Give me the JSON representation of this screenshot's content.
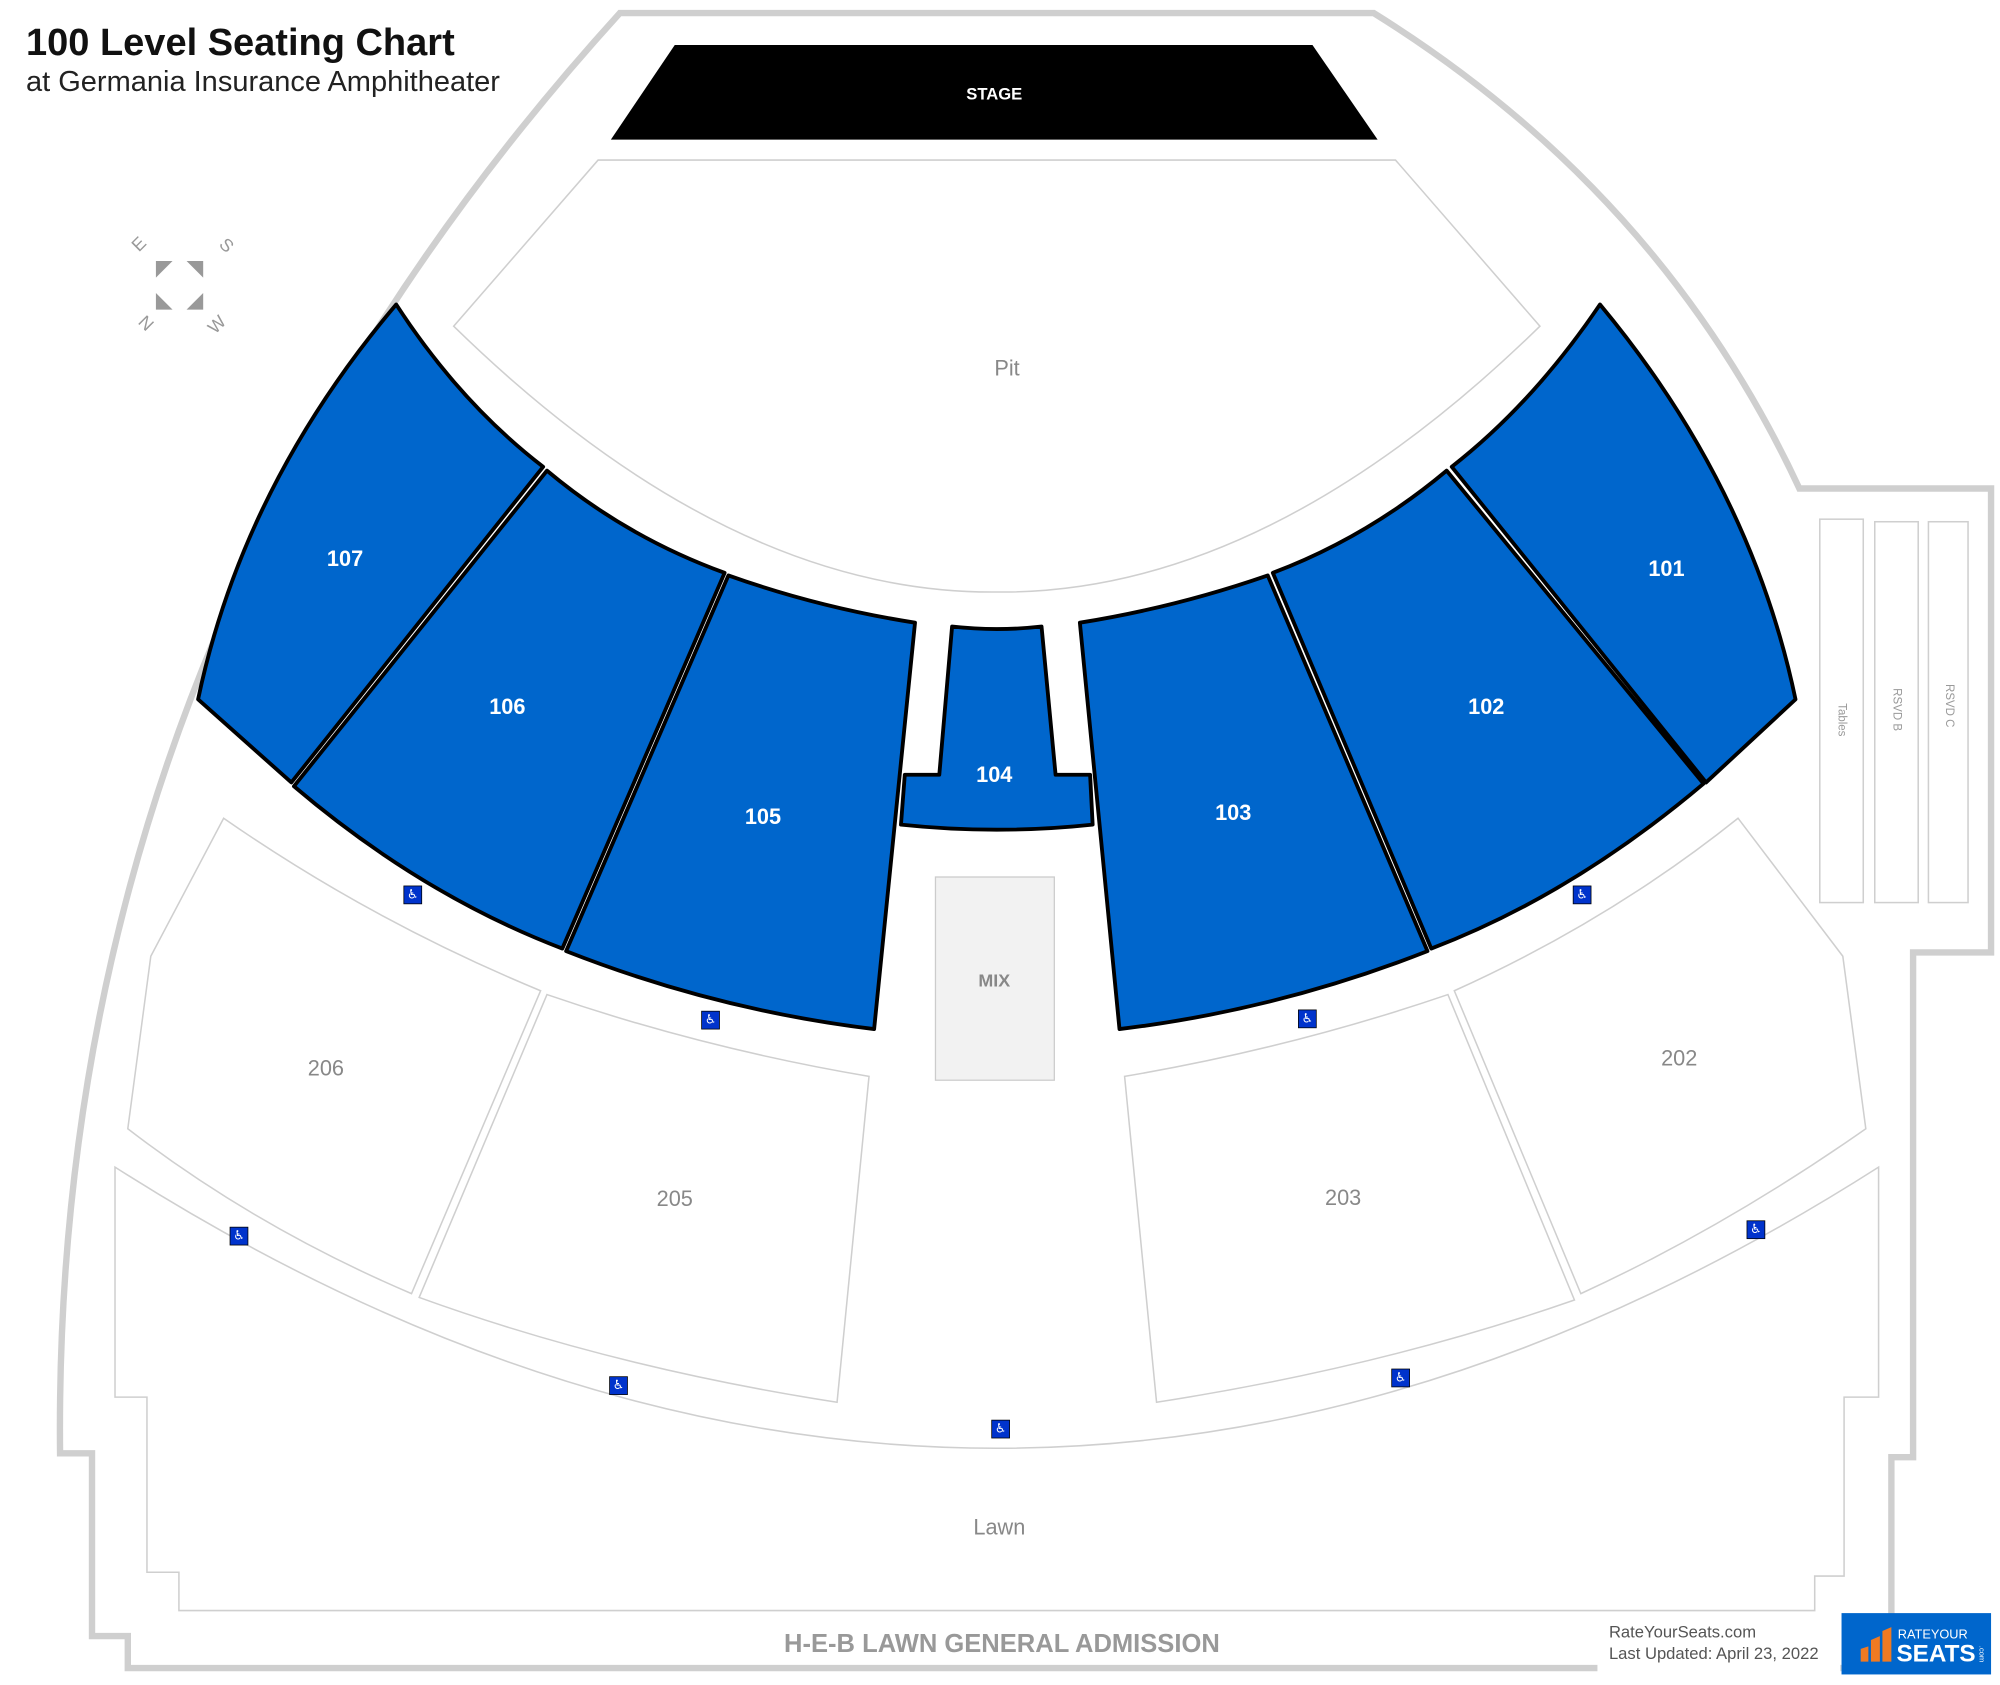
{
  "header": {
    "title": "100 Level Seating Chart",
    "subtitle": "at Germania Insurance Amphitheater"
  },
  "compass": {
    "e": "E",
    "s": "S",
    "n": "N",
    "w": "W"
  },
  "stage": "STAGE",
  "pit": "Pit",
  "mix": "MIX",
  "highlight_color": "#0066cc",
  "sections_100": [
    {
      "id": "107",
      "label": "107"
    },
    {
      "id": "106",
      "label": "106"
    },
    {
      "id": "105",
      "label": "105"
    },
    {
      "id": "104",
      "label": "104"
    },
    {
      "id": "103",
      "label": "103"
    },
    {
      "id": "102",
      "label": "102"
    },
    {
      "id": "101",
      "label": "101"
    }
  ],
  "sections_200": [
    {
      "id": "206",
      "label": "206"
    },
    {
      "id": "205",
      "label": "205"
    },
    {
      "id": "203",
      "label": "203"
    },
    {
      "id": "202",
      "label": "202"
    }
  ],
  "side_areas": [
    "Tables",
    "RSVD B",
    "RSVD C"
  ],
  "lawn": "Lawn",
  "lawn_banner": "H-E-B LAWN GENERAL ADMISSION",
  "accessibility_icon": "wheelchair-icon",
  "footer": {
    "site": "RateYourSeats.com",
    "updated": "Last Updated: April 23, 2022",
    "logo_top": "RATEYOUR",
    "logo_main": "SEATS",
    "logo_suffix": ".com"
  }
}
